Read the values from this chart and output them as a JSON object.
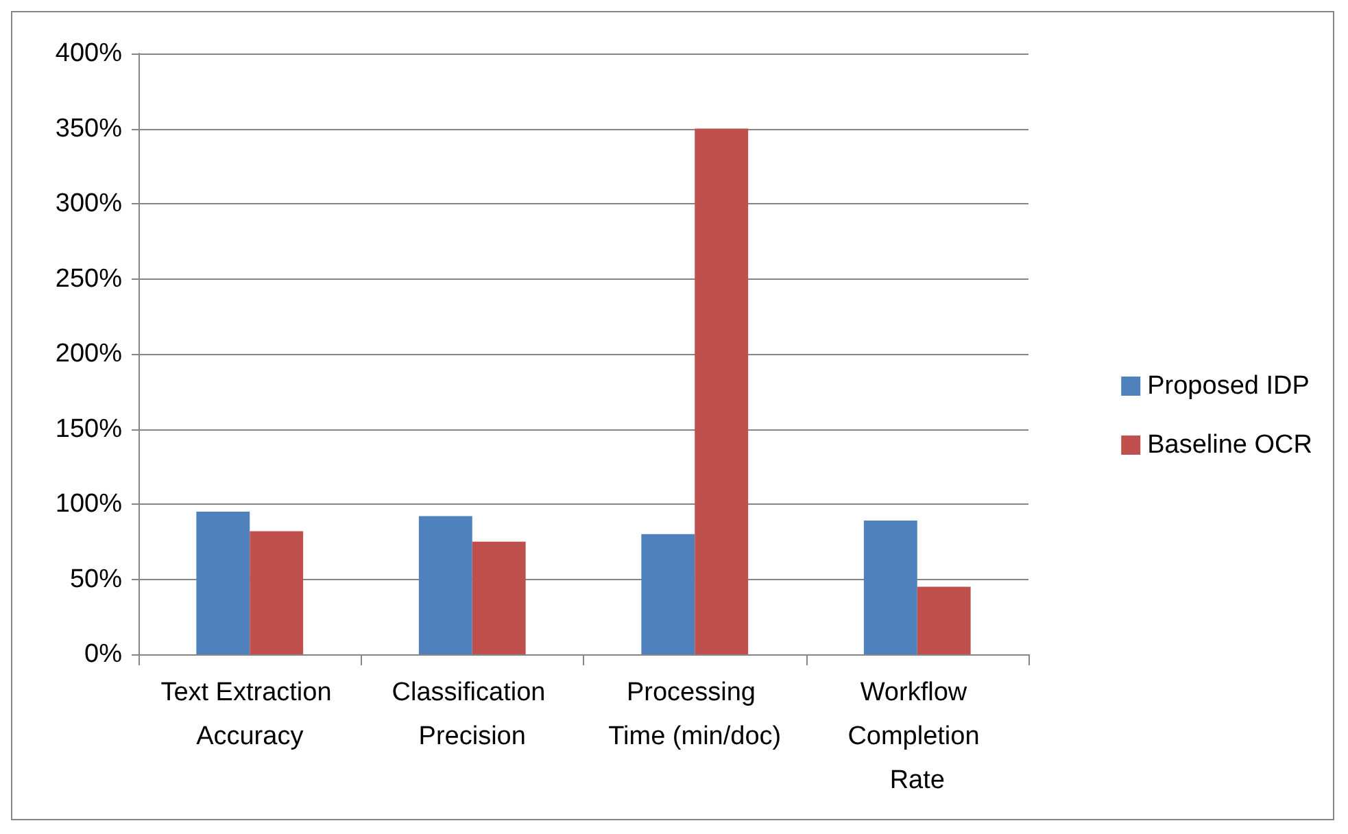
{
  "chart_data": {
    "type": "bar",
    "categories": [
      "Text Extraction Accuracy",
      "Classification Precision",
      "Processing Time (min/doc)",
      "Workflow Completion Rate"
    ],
    "series": [
      {
        "name": "Proposed IDP",
        "color": "#4f81bd",
        "values": [
          95,
          92,
          80,
          89
        ]
      },
      {
        "name": "Baseline OCR",
        "color": "#c0504d",
        "values": [
          82,
          75,
          350,
          45
        ]
      }
    ],
    "ylim": [
      0,
      400
    ],
    "yticks": [
      {
        "value": 0,
        "label": "0%"
      },
      {
        "value": 50,
        "label": "50%"
      },
      {
        "value": 100,
        "label": "100%"
      },
      {
        "value": 150,
        "label": "150%"
      },
      {
        "value": 200,
        "label": "200%"
      },
      {
        "value": 250,
        "label": "250%"
      },
      {
        "value": 300,
        "label": "300%"
      },
      {
        "value": 350,
        "label": "350%"
      },
      {
        "value": 400,
        "label": "400%"
      }
    ],
    "grid": "y",
    "legend": "right"
  }
}
